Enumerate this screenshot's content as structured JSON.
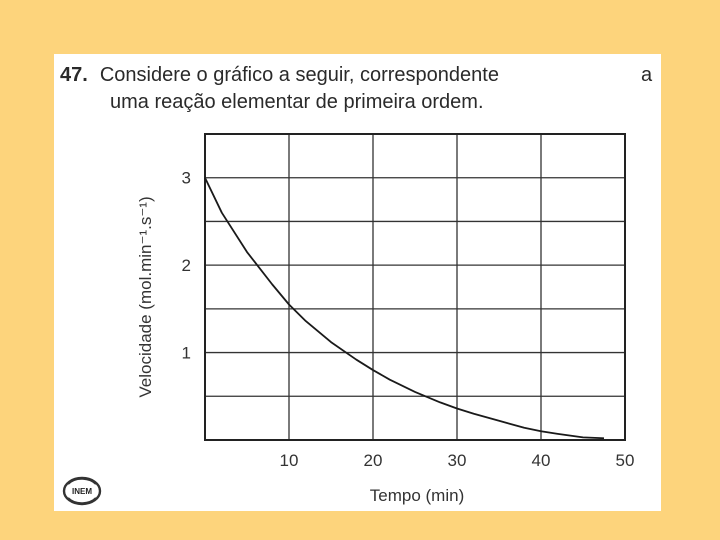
{
  "question": {
    "number": "47.",
    "line1": "Considere o gráfico a seguir, correspondente",
    "line1_end": "a",
    "line2": "uma reação elementar de primeira ordem."
  },
  "logo_text": "INEM",
  "chart_data": {
    "type": "line",
    "xlabel": "Tempo (min)",
    "ylabel": "Velocidade (mol.min⁻¹.s⁻¹)",
    "xlim": [
      0,
      50
    ],
    "ylim": [
      0,
      3.5
    ],
    "x_ticks": [
      10,
      20,
      30,
      40,
      50
    ],
    "y_ticks": [
      1,
      2,
      3
    ],
    "grid": true,
    "series": [
      {
        "x": [
          0,
          2,
          5,
          8,
          10,
          12,
          15,
          18,
          20,
          22,
          25,
          28,
          30,
          32,
          35,
          38,
          40,
          42,
          45,
          47.5
        ],
        "y": [
          3.0,
          2.6,
          2.15,
          1.78,
          1.55,
          1.36,
          1.12,
          0.92,
          0.8,
          0.69,
          0.55,
          0.43,
          0.36,
          0.3,
          0.22,
          0.14,
          0.1,
          0.07,
          0.03,
          0.02
        ]
      }
    ]
  }
}
